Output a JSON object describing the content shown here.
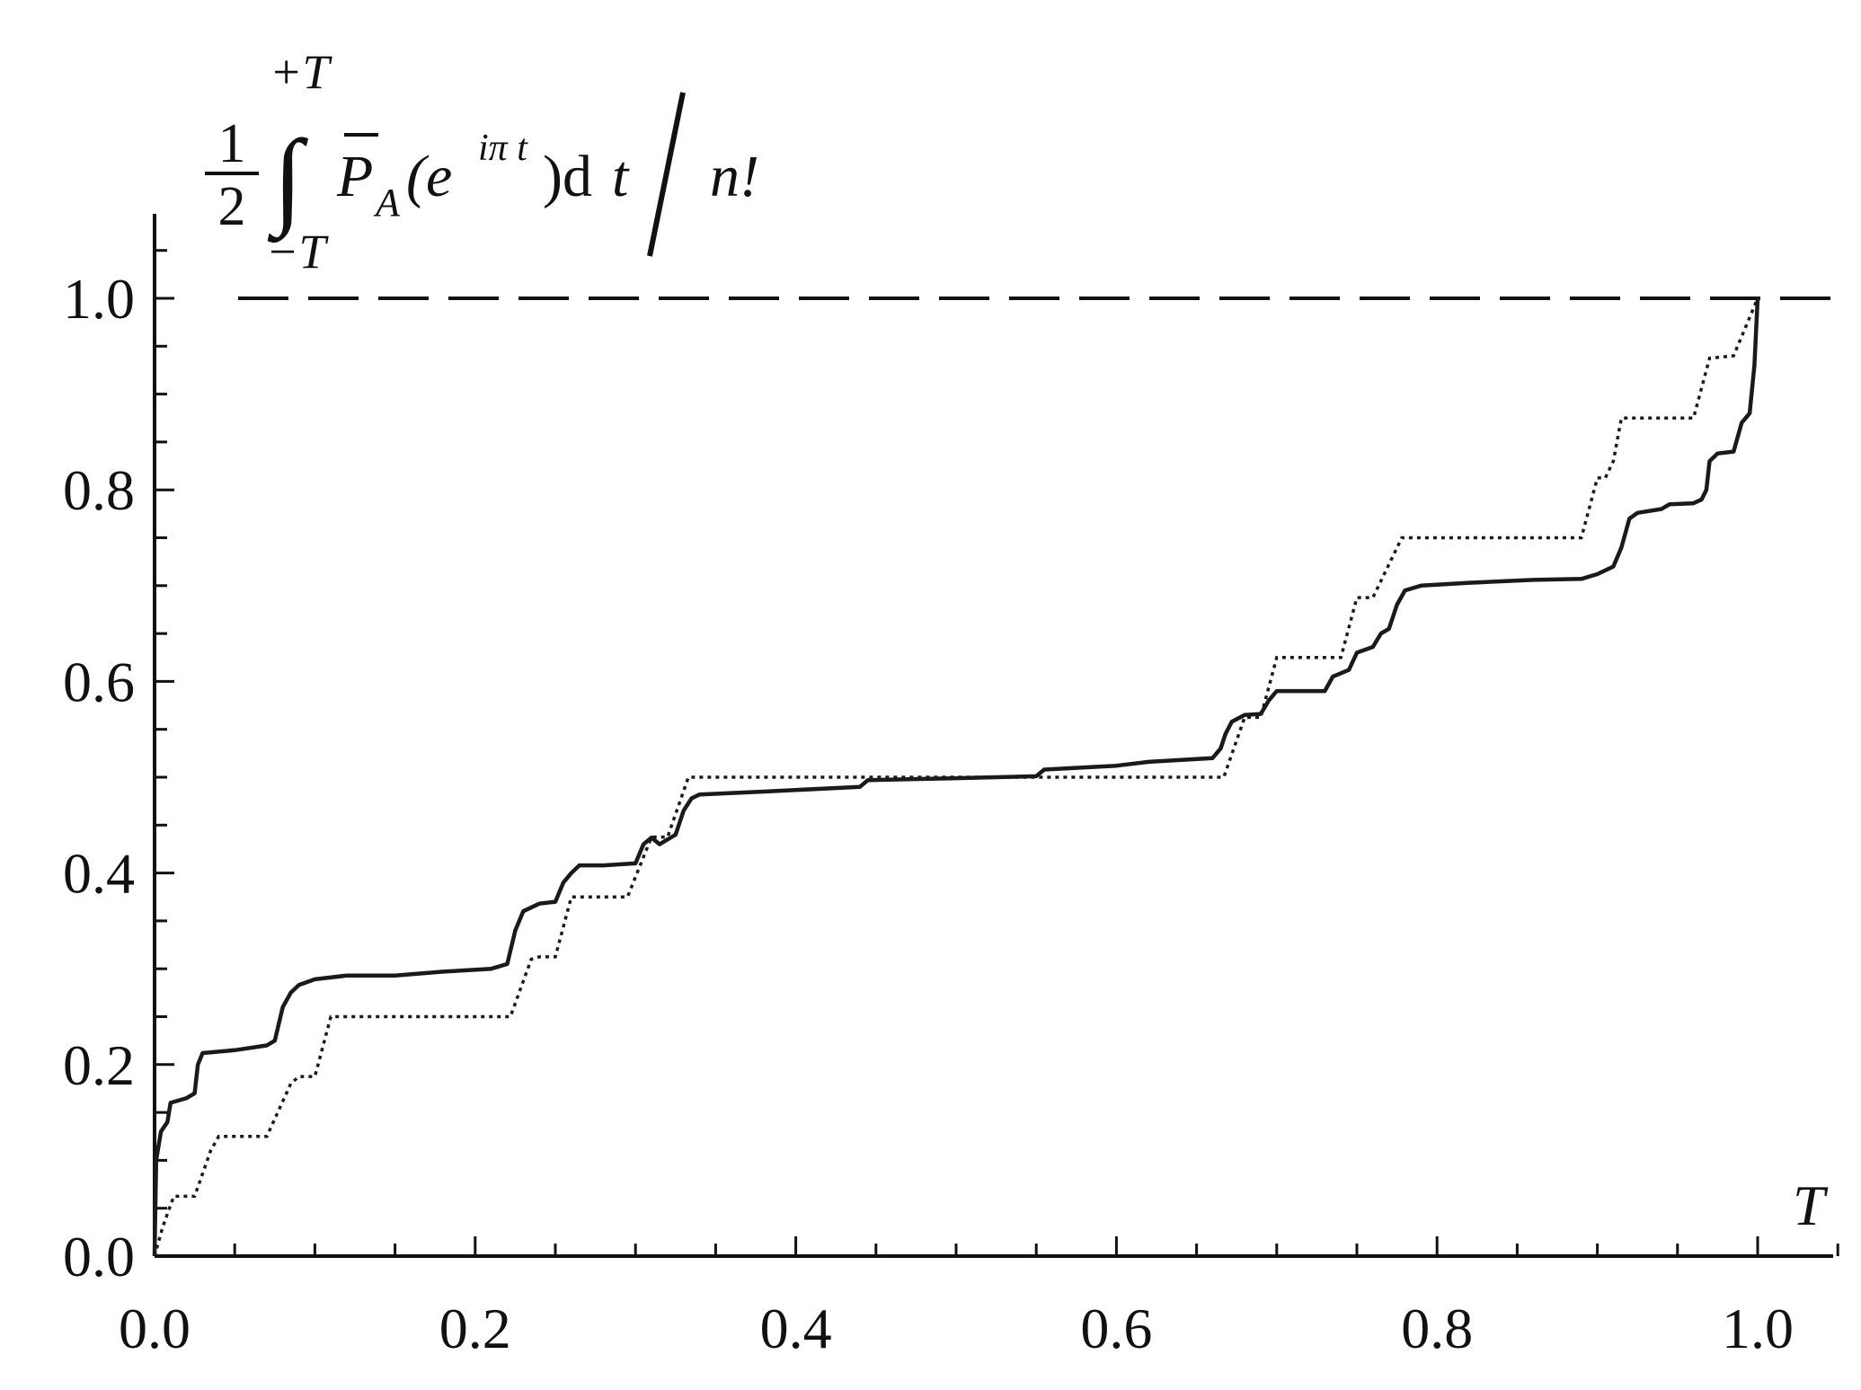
{
  "chart_data": {
    "type": "line",
    "xlabel": "T",
    "ylabel": {
      "frac_num": "1",
      "frac_den": "2",
      "upper_limit": "+T",
      "lower_limit": "−T",
      "integrand": "P",
      "subscript": "A",
      "open_paren": "(e",
      "exponent": "iπ t",
      "close_paren": ")d",
      "variable": "t",
      "divisor": "n!"
    },
    "xlim": [
      0.0,
      1.05
    ],
    "ylim": [
      0.0,
      1.09
    ],
    "x_ticks": [
      0.0,
      0.2,
      0.4,
      0.6,
      0.8,
      1.0
    ],
    "x_tick_labels": [
      "0.0",
      "0.2",
      "0.4",
      "0.6",
      "0.8",
      "1.0"
    ],
    "y_ticks": [
      0.0,
      0.2,
      0.4,
      0.6,
      0.8,
      1.0
    ],
    "y_tick_labels": [
      "0.0",
      "0.2",
      "0.4",
      "0.6",
      "0.8",
      "1.0"
    ],
    "grid": false,
    "legend": "none",
    "reference_line": {
      "y": 1.0,
      "style": "dashed"
    },
    "series": [
      {
        "style": "solid",
        "color": "#1a1a1a",
        "points": [
          [
            0.0,
            0.0
          ],
          [
            0.001,
            0.1
          ],
          [
            0.004,
            0.13
          ],
          [
            0.008,
            0.14
          ],
          [
            0.01,
            0.16
          ],
          [
            0.02,
            0.165
          ],
          [
            0.025,
            0.17
          ],
          [
            0.027,
            0.2
          ],
          [
            0.03,
            0.212
          ],
          [
            0.05,
            0.215
          ],
          [
            0.07,
            0.22
          ],
          [
            0.075,
            0.225
          ],
          [
            0.08,
            0.26
          ],
          [
            0.085,
            0.275
          ],
          [
            0.09,
            0.283
          ],
          [
            0.1,
            0.289
          ],
          [
            0.12,
            0.293
          ],
          [
            0.15,
            0.293
          ],
          [
            0.18,
            0.297
          ],
          [
            0.21,
            0.3
          ],
          [
            0.22,
            0.305
          ],
          [
            0.225,
            0.34
          ],
          [
            0.23,
            0.36
          ],
          [
            0.24,
            0.368
          ],
          [
            0.25,
            0.37
          ],
          [
            0.255,
            0.39
          ],
          [
            0.26,
            0.4
          ],
          [
            0.265,
            0.408
          ],
          [
            0.28,
            0.408
          ],
          [
            0.3,
            0.41
          ],
          [
            0.305,
            0.43
          ],
          [
            0.31,
            0.437
          ],
          [
            0.315,
            0.43
          ],
          [
            0.325,
            0.44
          ],
          [
            0.33,
            0.465
          ],
          [
            0.335,
            0.478
          ],
          [
            0.34,
            0.482
          ],
          [
            0.38,
            0.485
          ],
          [
            0.44,
            0.49
          ],
          [
            0.445,
            0.497
          ],
          [
            0.5,
            0.499
          ],
          [
            0.55,
            0.501
          ],
          [
            0.555,
            0.508
          ],
          [
            0.6,
            0.512
          ],
          [
            0.62,
            0.516
          ],
          [
            0.66,
            0.52
          ],
          [
            0.665,
            0.53
          ],
          [
            0.668,
            0.545
          ],
          [
            0.672,
            0.558
          ],
          [
            0.68,
            0.565
          ],
          [
            0.69,
            0.566
          ],
          [
            0.695,
            0.58
          ],
          [
            0.7,
            0.59
          ],
          [
            0.72,
            0.59
          ],
          [
            0.73,
            0.59
          ],
          [
            0.735,
            0.605
          ],
          [
            0.745,
            0.612
          ],
          [
            0.75,
            0.63
          ],
          [
            0.76,
            0.636
          ],
          [
            0.765,
            0.65
          ],
          [
            0.77,
            0.655
          ],
          [
            0.775,
            0.68
          ],
          [
            0.78,
            0.695
          ],
          [
            0.79,
            0.7
          ],
          [
            0.82,
            0.703
          ],
          [
            0.86,
            0.706
          ],
          [
            0.89,
            0.707
          ],
          [
            0.9,
            0.712
          ],
          [
            0.91,
            0.72
          ],
          [
            0.915,
            0.74
          ],
          [
            0.92,
            0.77
          ],
          [
            0.925,
            0.776
          ],
          [
            0.94,
            0.78
          ],
          [
            0.945,
            0.785
          ],
          [
            0.96,
            0.786
          ],
          [
            0.965,
            0.79
          ],
          [
            0.968,
            0.8
          ],
          [
            0.97,
            0.83
          ],
          [
            0.975,
            0.838
          ],
          [
            0.985,
            0.84
          ],
          [
            0.99,
            0.87
          ],
          [
            0.995,
            0.88
          ],
          [
            0.998,
            0.93
          ],
          [
            1.0,
            1.0
          ]
        ]
      },
      {
        "style": "dotted",
        "color": "#1a1a1a",
        "points": [
          [
            0.0,
            0.0
          ],
          [
            0.005,
            0.03
          ],
          [
            0.012,
            0.0625
          ],
          [
            0.025,
            0.0625
          ],
          [
            0.035,
            0.11
          ],
          [
            0.04,
            0.125
          ],
          [
            0.07,
            0.125
          ],
          [
            0.085,
            0.18
          ],
          [
            0.09,
            0.1875
          ],
          [
            0.1,
            0.1875
          ],
          [
            0.11,
            0.25
          ],
          [
            0.222,
            0.25
          ],
          [
            0.235,
            0.31
          ],
          [
            0.24,
            0.3125
          ],
          [
            0.25,
            0.3125
          ],
          [
            0.26,
            0.375
          ],
          [
            0.295,
            0.375
          ],
          [
            0.31,
            0.4375
          ],
          [
            0.32,
            0.4375
          ],
          [
            0.333,
            0.5
          ],
          [
            0.667,
            0.5
          ],
          [
            0.68,
            0.5625
          ],
          [
            0.69,
            0.5625
          ],
          [
            0.7,
            0.625
          ],
          [
            0.74,
            0.625
          ],
          [
            0.75,
            0.6875
          ],
          [
            0.76,
            0.6875
          ],
          [
            0.778,
            0.75
          ],
          [
            0.89,
            0.75
          ],
          [
            0.9,
            0.8125
          ],
          [
            0.905,
            0.8125
          ],
          [
            0.91,
            0.83
          ],
          [
            0.915,
            0.875
          ],
          [
            0.96,
            0.875
          ],
          [
            0.97,
            0.9375
          ],
          [
            0.985,
            0.94
          ],
          [
            1.0,
            1.0
          ]
        ]
      }
    ]
  }
}
